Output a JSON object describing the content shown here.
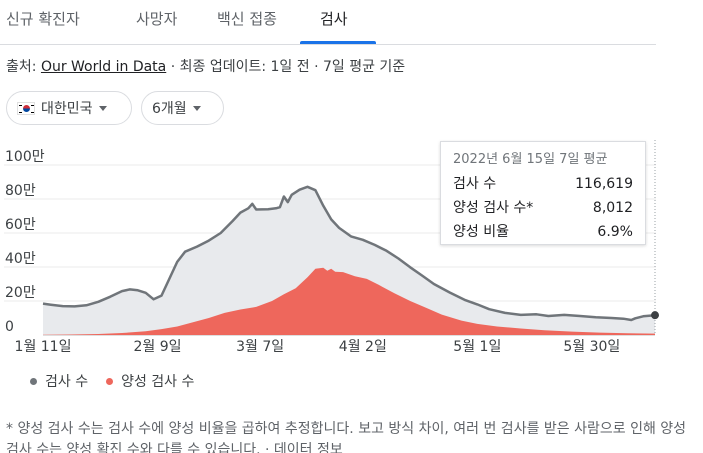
{
  "tabs": [
    {
      "label": "신규 확진자"
    },
    {
      "label": "사망자"
    },
    {
      "label": "백신 접종"
    },
    {
      "label": "검사"
    }
  ],
  "source": {
    "prefix": "출처:",
    "link": "Our World in Data",
    "suffix": "· 최종 업데이트: 1일 전 · 7일 평균 기준"
  },
  "filters": {
    "country": "대한민국",
    "period": "6개월"
  },
  "tooltip": {
    "date": "2022년 6월 15일 7일 평균",
    "rows": [
      {
        "label": "검사 수",
        "value": "116,619"
      },
      {
        "label": "양성 검사 수*",
        "value": "8,012"
      },
      {
        "label": "양성 비율",
        "value": "6.9%"
      }
    ]
  },
  "legend": [
    {
      "label": "검사 수",
      "color": "#70757a"
    },
    {
      "label": "양성 검사 수",
      "color": "#ee675c"
    }
  ],
  "note": {
    "text": "* 양성 검사 수는 검사 수에 양성 비율을 곱하여 추정합니다. 보고 방식 차이, 여러 번 검사를 받은 사람으로 인해 양성 검사 수는 양성 확진 수와 다를 수 있습니다.",
    "link": "데이터 정보"
  },
  "chart_data": {
    "type": "area",
    "y_ticks": [
      "100만",
      "80만",
      "60만",
      "40만",
      "20만",
      "0"
    ],
    "y_tick_values": [
      1000000,
      800000,
      600000,
      400000,
      200000,
      0
    ],
    "ylim": [
      0,
      1000000
    ],
    "x_tick_labels": [
      "1월 11일",
      "2월 9일",
      "3월 7일",
      "4월 2일",
      "5월 1일",
      "5월 30일"
    ],
    "x_tick_dates": [
      "2022-01-11",
      "2022-02-09",
      "2022-03-07",
      "2022-04-02",
      "2022-05-01",
      "2022-05-30"
    ],
    "xlim": [
      "2022-01-11",
      "2022-06-15"
    ],
    "colors": {
      "tests_line": "#70757a",
      "tests_fill": "#e8eaed",
      "positive_fill": "#ee675c"
    },
    "series": [
      {
        "name": "검사 수",
        "points": [
          [
            "2022-01-11",
            185000
          ],
          [
            "2022-01-13",
            178000
          ],
          [
            "2022-01-16",
            170000
          ],
          [
            "2022-01-19",
            168000
          ],
          [
            "2022-01-22",
            175000
          ],
          [
            "2022-01-25",
            195000
          ],
          [
            "2022-01-28",
            225000
          ],
          [
            "2022-01-31",
            258000
          ],
          [
            "2022-02-02",
            268000
          ],
          [
            "2022-02-04",
            263000
          ],
          [
            "2022-02-06",
            248000
          ],
          [
            "2022-02-08",
            210000
          ],
          [
            "2022-02-10",
            232000
          ],
          [
            "2022-02-12",
            330000
          ],
          [
            "2022-02-14",
            430000
          ],
          [
            "2022-02-16",
            490000
          ],
          [
            "2022-02-19",
            520000
          ],
          [
            "2022-02-22",
            555000
          ],
          [
            "2022-02-25",
            600000
          ],
          [
            "2022-02-28",
            670000
          ],
          [
            "2022-03-02",
            720000
          ],
          [
            "2022-03-04",
            745000
          ],
          [
            "2022-03-05",
            772000
          ],
          [
            "2022-03-06",
            738000
          ],
          [
            "2022-03-09",
            740000
          ],
          [
            "2022-03-11",
            745000
          ],
          [
            "2022-03-12",
            752000
          ],
          [
            "2022-03-13",
            815000
          ],
          [
            "2022-03-14",
            782000
          ],
          [
            "2022-03-15",
            825000
          ],
          [
            "2022-03-17",
            855000
          ],
          [
            "2022-03-19",
            872000
          ],
          [
            "2022-03-21",
            852000
          ],
          [
            "2022-03-23",
            760000
          ],
          [
            "2022-03-25",
            680000
          ],
          [
            "2022-03-27",
            630000
          ],
          [
            "2022-03-30",
            580000
          ],
          [
            "2022-04-02",
            560000
          ],
          [
            "2022-04-05",
            530000
          ],
          [
            "2022-04-08",
            495000
          ],
          [
            "2022-04-11",
            450000
          ],
          [
            "2022-04-14",
            398000
          ],
          [
            "2022-04-17",
            350000
          ],
          [
            "2022-04-20",
            300000
          ],
          [
            "2022-04-24",
            250000
          ],
          [
            "2022-04-28",
            205000
          ],
          [
            "2022-05-01",
            180000
          ],
          [
            "2022-05-04",
            152000
          ],
          [
            "2022-05-08",
            130000
          ],
          [
            "2022-05-12",
            118000
          ],
          [
            "2022-05-16",
            122000
          ],
          [
            "2022-05-19",
            112000
          ],
          [
            "2022-05-23",
            118000
          ],
          [
            "2022-05-27",
            112000
          ],
          [
            "2022-05-31",
            105000
          ],
          [
            "2022-06-04",
            100000
          ],
          [
            "2022-06-07",
            96000
          ],
          [
            "2022-06-09",
            88000
          ],
          [
            "2022-06-10",
            98000
          ],
          [
            "2022-06-12",
            110000
          ],
          [
            "2022-06-15",
            116619
          ]
        ]
      },
      {
        "name": "양성 검사 수",
        "points": [
          [
            "2022-01-11",
            2000
          ],
          [
            "2022-01-18",
            3000
          ],
          [
            "2022-01-25",
            6000
          ],
          [
            "2022-01-31",
            12000
          ],
          [
            "2022-02-06",
            22000
          ],
          [
            "2022-02-10",
            35000
          ],
          [
            "2022-02-14",
            50000
          ],
          [
            "2022-02-18",
            75000
          ],
          [
            "2022-02-22",
            100000
          ],
          [
            "2022-02-26",
            130000
          ],
          [
            "2022-03-02",
            150000
          ],
          [
            "2022-03-06",
            165000
          ],
          [
            "2022-03-10",
            200000
          ],
          [
            "2022-03-13",
            240000
          ],
          [
            "2022-03-16",
            275000
          ],
          [
            "2022-03-19",
            340000
          ],
          [
            "2022-03-21",
            390000
          ],
          [
            "2022-03-23",
            395000
          ],
          [
            "2022-03-24",
            378000
          ],
          [
            "2022-03-25",
            390000
          ],
          [
            "2022-03-26",
            372000
          ],
          [
            "2022-03-28",
            370000
          ],
          [
            "2022-03-31",
            345000
          ],
          [
            "2022-04-03",
            330000
          ],
          [
            "2022-04-06",
            295000
          ],
          [
            "2022-04-10",
            245000
          ],
          [
            "2022-04-14",
            200000
          ],
          [
            "2022-04-18",
            160000
          ],
          [
            "2022-04-22",
            120000
          ],
          [
            "2022-04-27",
            85000
          ],
          [
            "2022-05-01",
            65000
          ],
          [
            "2022-05-06",
            50000
          ],
          [
            "2022-05-12",
            38000
          ],
          [
            "2022-05-18",
            28000
          ],
          [
            "2022-05-25",
            20000
          ],
          [
            "2022-06-01",
            14000
          ],
          [
            "2022-06-08",
            10000
          ],
          [
            "2022-06-15",
            8012
          ]
        ]
      }
    ]
  }
}
